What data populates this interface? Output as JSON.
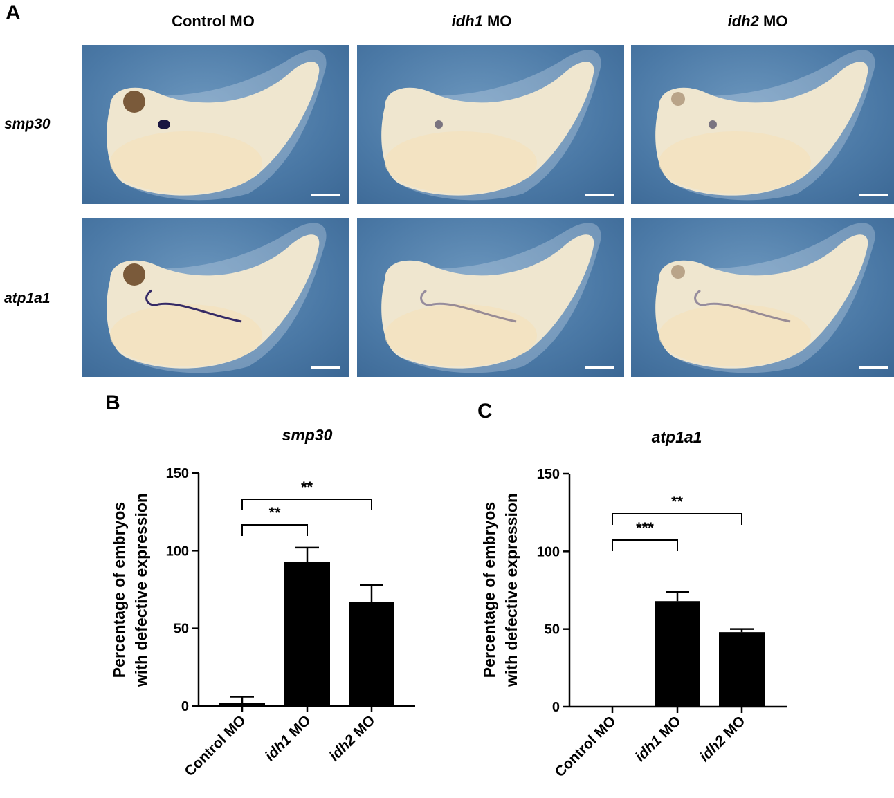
{
  "panels": {
    "a_label": "A",
    "b_label": "B",
    "c_label": "C",
    "columns": [
      {
        "main": "Control MO",
        "italic": "",
        "rest": ""
      },
      {
        "main": "",
        "italic": "idh1",
        "rest": " MO"
      },
      {
        "main": "",
        "italic": "idh2",
        "rest": " MO"
      }
    ],
    "rows": [
      "smp30",
      "atp1a1"
    ]
  },
  "colors": {
    "bar": "#000000",
    "background_blue": "#4b79a6",
    "embryo": "#efe6cf",
    "stain": "#2a2060"
  },
  "icons": [
    "tadpole-embryo-image",
    "scale-bar"
  ],
  "chart_data": [
    {
      "type": "bar",
      "title": "smp30",
      "ylabel_line1": "Percentage of embryos",
      "ylabel_line2": "with defective expression",
      "ylim": [
        0,
        150
      ],
      "yticks": [
        "0",
        "50",
        "100",
        "150"
      ],
      "categories": [
        {
          "italic": "",
          "rest": "Control MO"
        },
        {
          "italic": "idh1",
          "rest": " MO"
        },
        {
          "italic": "idh2",
          "rest": " MO"
        }
      ],
      "values": [
        2,
        93,
        67
      ],
      "errors": [
        4,
        9,
        11
      ],
      "significance": [
        {
          "from": 0,
          "to": 1,
          "label": "**"
        },
        {
          "from": 0,
          "to": 2,
          "label": "**"
        }
      ]
    },
    {
      "type": "bar",
      "title": "atp1a1",
      "ylabel_line1": "Percentage of embryos",
      "ylabel_line2": "with defective expression",
      "ylim": [
        0,
        150
      ],
      "yticks": [
        "0",
        "50",
        "100",
        "150"
      ],
      "categories": [
        {
          "italic": "",
          "rest": "Control MO"
        },
        {
          "italic": "idh1",
          "rest": " MO"
        },
        {
          "italic": "idh2",
          "rest": " MO"
        }
      ],
      "values": [
        0,
        68,
        48
      ],
      "errors": [
        0,
        6,
        2
      ],
      "significance": [
        {
          "from": 0,
          "to": 1,
          "label": "***"
        },
        {
          "from": 0,
          "to": 2,
          "label": "**"
        }
      ]
    }
  ]
}
